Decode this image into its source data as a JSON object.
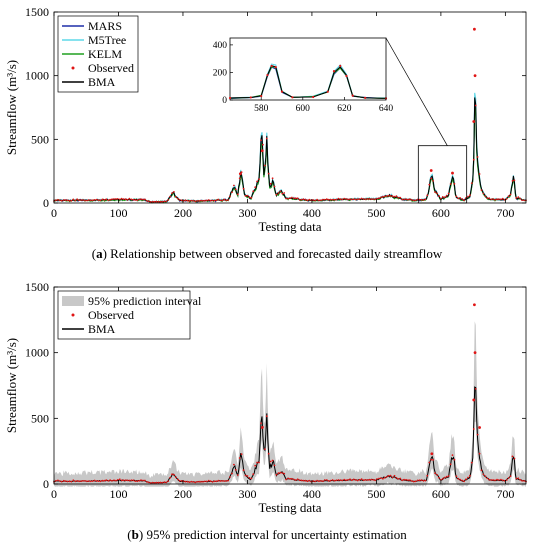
{
  "charts": [
    {
      "caption_letter": "a",
      "caption_text": "Relationship between observed and forecasted daily streamflow"
    },
    {
      "caption_letter": "b",
      "caption_text": "95% prediction interval for uncertainty estimation"
    }
  ],
  "chart_data": [
    {
      "type": "line",
      "xlabel": "Testing data",
      "ylabel": "Streamflow (m³/s)",
      "xlim": [
        0,
        732
      ],
      "ylim": [
        0,
        1500
      ],
      "xticks": [
        0,
        100,
        200,
        300,
        400,
        500,
        600,
        700
      ],
      "yticks": [
        0,
        500,
        1000,
        1500
      ],
      "legend_position": "top-left",
      "colors": {
        "MARS": "#1f2fa8",
        "M5Tree": "#5fd8e8",
        "KELM": "#21a021",
        "Observed": "#e01515",
        "BMA": "#000000"
      },
      "series_names": [
        "MARS",
        "M5Tree",
        "KELM",
        "Observed",
        "BMA"
      ],
      "observed_peaks": [
        {
          "x": 323,
          "y": 410
        },
        {
          "x": 585,
          "y": 255
        },
        {
          "x": 618,
          "y": 235
        },
        {
          "x": 652,
          "y": 1365
        },
        {
          "x": 653,
          "y": 1000
        },
        {
          "x": 651,
          "y": 640
        },
        {
          "x": 289,
          "y": 230
        }
      ],
      "bma_series": [
        [
          0,
          20
        ],
        [
          50,
          22
        ],
        [
          100,
          28
        ],
        [
          140,
          25
        ],
        [
          150,
          8
        ],
        [
          175,
          12
        ],
        [
          185,
          80
        ],
        [
          195,
          20
        ],
        [
          220,
          15
        ],
        [
          270,
          25
        ],
        [
          280,
          140
        ],
        [
          285,
          60
        ],
        [
          290,
          250
        ],
        [
          295,
          80
        ],
        [
          305,
          30
        ],
        [
          318,
          180
        ],
        [
          322,
          545
        ],
        [
          326,
          200
        ],
        [
          330,
          480
        ],
        [
          334,
          120
        ],
        [
          340,
          170
        ],
        [
          345,
          60
        ],
        [
          352,
          100
        ],
        [
          360,
          40
        ],
        [
          380,
          30
        ],
        [
          400,
          20
        ],
        [
          450,
          28
        ],
        [
          500,
          32
        ],
        [
          520,
          60
        ],
        [
          540,
          30
        ],
        [
          560,
          20
        ],
        [
          578,
          30
        ],
        [
          583,
          150
        ],
        [
          586,
          240
        ],
        [
          590,
          100
        ],
        [
          600,
          30
        ],
        [
          612,
          60
        ],
        [
          617,
          200
        ],
        [
          620,
          220
        ],
        [
          623,
          50
        ],
        [
          635,
          20
        ],
        [
          645,
          50
        ],
        [
          650,
          200
        ],
        [
          653,
          860
        ],
        [
          656,
          380
        ],
        [
          660,
          180
        ],
        [
          665,
          80
        ],
        [
          675,
          30
        ],
        [
          700,
          25
        ],
        [
          708,
          60
        ],
        [
          713,
          250
        ],
        [
          716,
          40
        ],
        [
          732,
          20
        ]
      ],
      "inset": {
        "xlim": [
          565,
          640
        ],
        "ylim": [
          0,
          450
        ],
        "xticks": [
          580,
          600,
          620,
          640
        ],
        "yticks": [
          0,
          200,
          400
        ],
        "series": [
          [
            565,
            15
          ],
          [
            575,
            18
          ],
          [
            580,
            30
          ],
          [
            583,
            180
          ],
          [
            585,
            250
          ],
          [
            587,
            240
          ],
          [
            590,
            60
          ],
          [
            595,
            20
          ],
          [
            605,
            22
          ],
          [
            612,
            60
          ],
          [
            615,
            200
          ],
          [
            618,
            240
          ],
          [
            621,
            180
          ],
          [
            624,
            30
          ],
          [
            630,
            15
          ],
          [
            640,
            12
          ]
        ]
      }
    },
    {
      "type": "line",
      "xlabel": "Testing data",
      "ylabel": "Streamflow (m³/s)",
      "xlim": [
        0,
        732
      ],
      "ylim": [
        0,
        1500
      ],
      "xticks": [
        0,
        100,
        200,
        300,
        400,
        500,
        600,
        700
      ],
      "yticks": [
        0,
        500,
        1000,
        1500
      ],
      "legend_position": "top-left",
      "colors": {
        "interval": "#c8c8c8",
        "Observed": "#e01515",
        "BMA": "#000000"
      },
      "series_names": [
        "95% prediction interval",
        "Observed",
        "BMA"
      ],
      "observed_peaks": [
        {
          "x": 652,
          "y": 1365
        },
        {
          "x": 653,
          "y": 1000
        },
        {
          "x": 651,
          "y": 640
        },
        {
          "x": 323,
          "y": 430
        },
        {
          "x": 660,
          "y": 430
        },
        {
          "x": 586,
          "y": 230
        }
      ],
      "bma_series": [
        [
          0,
          20
        ],
        [
          50,
          22
        ],
        [
          100,
          28
        ],
        [
          140,
          25
        ],
        [
          150,
          8
        ],
        [
          175,
          12
        ],
        [
          185,
          80
        ],
        [
          195,
          20
        ],
        [
          220,
          15
        ],
        [
          270,
          25
        ],
        [
          280,
          140
        ],
        [
          285,
          60
        ],
        [
          290,
          250
        ],
        [
          295,
          80
        ],
        [
          305,
          30
        ],
        [
          318,
          180
        ],
        [
          322,
          545
        ],
        [
          326,
          200
        ],
        [
          330,
          480
        ],
        [
          334,
          120
        ],
        [
          340,
          170
        ],
        [
          345,
          60
        ],
        [
          352,
          100
        ],
        [
          360,
          40
        ],
        [
          380,
          30
        ],
        [
          400,
          20
        ],
        [
          450,
          28
        ],
        [
          500,
          32
        ],
        [
          520,
          60
        ],
        [
          540,
          30
        ],
        [
          560,
          20
        ],
        [
          578,
          30
        ],
        [
          583,
          150
        ],
        [
          586,
          240
        ],
        [
          590,
          100
        ],
        [
          600,
          30
        ],
        [
          612,
          60
        ],
        [
          617,
          200
        ],
        [
          620,
          220
        ],
        [
          623,
          50
        ],
        [
          635,
          20
        ],
        [
          645,
          50
        ],
        [
          650,
          200
        ],
        [
          653,
          860
        ],
        [
          656,
          380
        ],
        [
          660,
          180
        ],
        [
          665,
          80
        ],
        [
          675,
          30
        ],
        [
          700,
          25
        ],
        [
          708,
          60
        ],
        [
          713,
          250
        ],
        [
          716,
          40
        ],
        [
          732,
          20
        ]
      ]
    }
  ]
}
